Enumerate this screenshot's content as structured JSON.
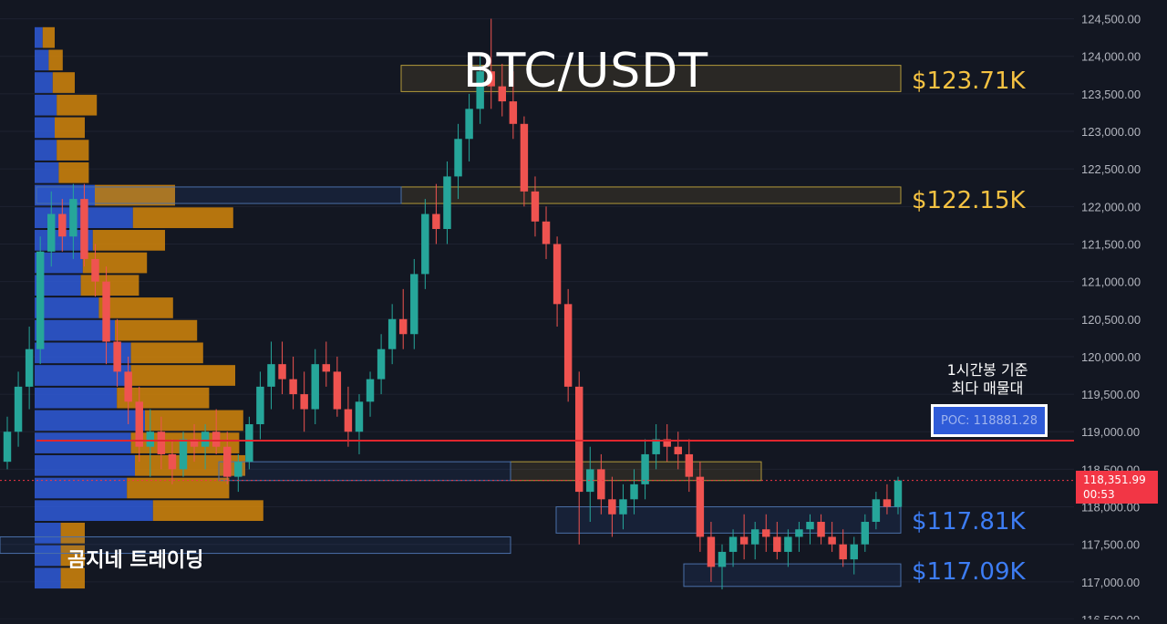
{
  "overlay": {
    "title": "BTC/USDT",
    "watermark": "곰지네 트레이딩",
    "annotation_line1": "1시간봉 기준",
    "annotation_line2": "최다 매물대",
    "poc_label": "POC: 118881.28",
    "last_price": "118,351.99",
    "countdown": "00:53"
  },
  "levels": [
    {
      "label": "$123.71K",
      "color": "#f5c242"
    },
    {
      "label": "$122.15K",
      "color": "#f5c242"
    },
    {
      "label": "$117.81K",
      "color": "#3d7df5"
    },
    {
      "label": "$117.09K",
      "color": "#3d7df5"
    }
  ],
  "colors": {
    "background": "#131722",
    "up": "#26a69a",
    "down": "#ef5350",
    "poc_line": "#e0262e",
    "vp_buy": "#2f5bd8",
    "vp_sell": "#d4860b"
  },
  "chart_data": {
    "type": "candlestick",
    "title": "BTC/USDT",
    "ylim": [
      116500,
      124750
    ],
    "y_ticks": [
      "124,500.00",
      "124,000.00",
      "123,500.00",
      "123,000.00",
      "122,500.00",
      "122,000.00",
      "121,500.00",
      "121,000.00",
      "120,500.00",
      "120,000.00",
      "119,500.00",
      "119,000.00",
      "118,500.00",
      "118,000.00",
      "117,500.00",
      "117,000.00",
      "116,500.00"
    ],
    "y_tick_values": [
      124500,
      124000,
      123500,
      123000,
      122500,
      122000,
      121500,
      121000,
      120500,
      120000,
      119500,
      119000,
      118500,
      118000,
      117500,
      117000,
      116500
    ],
    "poc": 118881.28,
    "last_price": 118351.99,
    "candles": [
      [
        118600,
        119200,
        118500,
        119000
      ],
      [
        119000,
        119800,
        118800,
        119600
      ],
      [
        119600,
        120400,
        119300,
        120100
      ],
      [
        120100,
        121600,
        119900,
        121400
      ],
      [
        121400,
        122200,
        121200,
        121900
      ],
      [
        121900,
        122100,
        121400,
        121600
      ],
      [
        121600,
        122300,
        121300,
        122100
      ],
      [
        122100,
        122300,
        121200,
        121300
      ],
      [
        121300,
        121500,
        120800,
        121000
      ],
      [
        121000,
        121200,
        119900,
        120200
      ],
      [
        120200,
        120500,
        119600,
        119800
      ],
      [
        119800,
        120000,
        119100,
        119400
      ],
      [
        119400,
        119600,
        118600,
        118800
      ],
      [
        118800,
        119300,
        118400,
        119000
      ],
      [
        119000,
        119200,
        118500,
        118700
      ],
      [
        118700,
        118900,
        118300,
        118500
      ],
      [
        118500,
        119000,
        118400,
        118900
      ],
      [
        118900,
        119100,
        118600,
        118800
      ],
      [
        118800,
        119100,
        118500,
        119000
      ],
      [
        119000,
        119300,
        118700,
        118800
      ],
      [
        118800,
        119000,
        118300,
        118400
      ],
      [
        118400,
        118700,
        118200,
        118600
      ],
      [
        118600,
        119200,
        118500,
        119100
      ],
      [
        119100,
        119800,
        118900,
        119600
      ],
      [
        119600,
        120200,
        119300,
        119900
      ],
      [
        119900,
        120200,
        119500,
        119700
      ],
      [
        119700,
        120000,
        119300,
        119500
      ],
      [
        119500,
        119800,
        119000,
        119300
      ],
      [
        119300,
        120100,
        119100,
        119900
      ],
      [
        119900,
        120200,
        119600,
        119800
      ],
      [
        119800,
        120000,
        119200,
        119300
      ],
      [
        119300,
        119600,
        118800,
        119000
      ],
      [
        119000,
        119500,
        118700,
        119400
      ],
      [
        119400,
        119800,
        119200,
        119700
      ],
      [
        119700,
        120300,
        119500,
        120100
      ],
      [
        120100,
        120700,
        119900,
        120500
      ],
      [
        120500,
        120900,
        120100,
        120300
      ],
      [
        120300,
        121300,
        120100,
        121100
      ],
      [
        121100,
        122100,
        120900,
        121900
      ],
      [
        121900,
        122300,
        121500,
        121700
      ],
      [
        121700,
        122600,
        121500,
        122400
      ],
      [
        122400,
        123100,
        122100,
        122900
      ],
      [
        122900,
        123500,
        122600,
        123300
      ],
      [
        123300,
        124000,
        123100,
        123800
      ],
      [
        123800,
        124500,
        123300,
        123600
      ],
      [
        123600,
        123900,
        123200,
        123400
      ],
      [
        123400,
        123800,
        122900,
        123100
      ],
      [
        123100,
        123200,
        122000,
        122200
      ],
      [
        122200,
        122400,
        121600,
        121800
      ],
      [
        121800,
        122000,
        121300,
        121500
      ],
      [
        121500,
        121600,
        120400,
        120700
      ],
      [
        120700,
        120900,
        119400,
        119600
      ],
      [
        119600,
        119800,
        117500,
        118200
      ],
      [
        118200,
        118800,
        117800,
        118500
      ],
      [
        118500,
        118700,
        117900,
        118100
      ],
      [
        118100,
        118400,
        117600,
        117900
      ],
      [
        117900,
        118300,
        117700,
        118100
      ],
      [
        118100,
        118500,
        117900,
        118300
      ],
      [
        118300,
        118900,
        118100,
        118700
      ],
      [
        118700,
        119100,
        118500,
        118900
      ],
      [
        118900,
        119100,
        118600,
        118800
      ],
      [
        118800,
        119000,
        118500,
        118700
      ],
      [
        118700,
        118900,
        118200,
        118400
      ],
      [
        118400,
        118600,
        117400,
        117600
      ],
      [
        117600,
        117800,
        117000,
        117200
      ],
      [
        117200,
        117500,
        116900,
        117400
      ],
      [
        117400,
        117700,
        117200,
        117600
      ],
      [
        117600,
        117900,
        117300,
        117500
      ],
      [
        117500,
        117800,
        117300,
        117700
      ],
      [
        117700,
        117900,
        117400,
        117600
      ],
      [
        117600,
        117800,
        117300,
        117400
      ],
      [
        117400,
        117700,
        117200,
        117600
      ],
      [
        117600,
        117800,
        117400,
        117700
      ],
      [
        117700,
        117900,
        117500,
        117800
      ],
      [
        117800,
        117900,
        117500,
        117600
      ],
      [
        117600,
        117800,
        117400,
        117500
      ],
      [
        117500,
        117700,
        117200,
        117300
      ],
      [
        117300,
        117600,
        117100,
        117500
      ],
      [
        117500,
        117900,
        117400,
        117800
      ],
      [
        117800,
        118200,
        117700,
        118100
      ],
      [
        118100,
        118300,
        117900,
        118000
      ],
      [
        118000,
        118400,
        117900,
        118352
      ]
    ],
    "volume_profile": [
      {
        "price": 124250,
        "buy": 8,
        "sell": 12
      },
      {
        "price": 123950,
        "buy": 14,
        "sell": 14
      },
      {
        "price": 123650,
        "buy": 18,
        "sell": 22
      },
      {
        "price": 123350,
        "buy": 22,
        "sell": 40
      },
      {
        "price": 123050,
        "buy": 20,
        "sell": 30
      },
      {
        "price": 122750,
        "buy": 22,
        "sell": 32
      },
      {
        "price": 122450,
        "buy": 24,
        "sell": 30
      },
      {
        "price": 122150,
        "buy": 60,
        "sell": 80
      },
      {
        "price": 121850,
        "buy": 98,
        "sell": 100
      },
      {
        "price": 121550,
        "buy": 58,
        "sell": 72
      },
      {
        "price": 121250,
        "buy": 48,
        "sell": 64
      },
      {
        "price": 120950,
        "buy": 46,
        "sell": 58
      },
      {
        "price": 120650,
        "buy": 64,
        "sell": 74
      },
      {
        "price": 120350,
        "buy": 80,
        "sell": 82
      },
      {
        "price": 120050,
        "buy": 96,
        "sell": 72
      },
      {
        "price": 119750,
        "buy": 96,
        "sell": 104
      },
      {
        "price": 119450,
        "buy": 82,
        "sell": 92
      },
      {
        "price": 119150,
        "buy": 110,
        "sell": 98
      },
      {
        "price": 118850,
        "buy": 96,
        "sell": 108
      },
      {
        "price": 118550,
        "buy": 100,
        "sell": 110
      },
      {
        "price": 118250,
        "buy": 92,
        "sell": 102
      },
      {
        "price": 117950,
        "buy": 118,
        "sell": 110
      },
      {
        "price": 117650,
        "buy": 26,
        "sell": 24
      },
      {
        "price": 117350,
        "buy": 26,
        "sell": 24
      },
      {
        "price": 117050,
        "buy": 26,
        "sell": 24
      }
    ],
    "zones": [
      {
        "low": 123530,
        "high": 123880,
        "kind": "resistance"
      },
      {
        "low": 122040,
        "high": 122260,
        "kind": "resistance"
      },
      {
        "low": 118350,
        "high": 118600,
        "kind": "range"
      },
      {
        "low": 117650,
        "high": 118000,
        "kind": "support"
      },
      {
        "low": 116940,
        "high": 117240,
        "kind": "support"
      }
    ]
  }
}
